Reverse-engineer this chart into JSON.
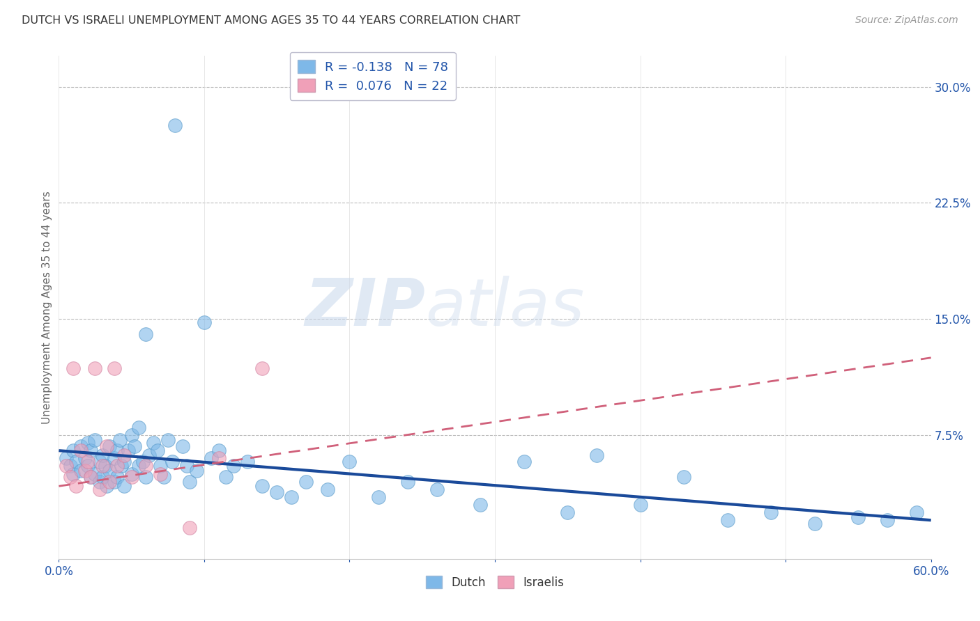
{
  "title": "DUTCH VS ISRAELI UNEMPLOYMENT AMONG AGES 35 TO 44 YEARS CORRELATION CHART",
  "source": "Source: ZipAtlas.com",
  "ylabel": "Unemployment Among Ages 35 to 44 years",
  "xlim": [
    0.0,
    0.6
  ],
  "ylim": [
    -0.005,
    0.32
  ],
  "xticks": [
    0.0,
    0.1,
    0.2,
    0.3,
    0.4,
    0.5,
    0.6
  ],
  "xticklabels": [
    "0.0%",
    "",
    "",
    "",
    "",
    "",
    "60.0%"
  ],
  "ytick_positions": [
    0.0,
    0.075,
    0.15,
    0.225,
    0.3
  ],
  "ytick_labels": [
    "",
    "7.5%",
    "15.0%",
    "22.5%",
    "30.0%"
  ],
  "dutch_color": "#7EB8E8",
  "israeli_color": "#F0A0B8",
  "dutch_line_color": "#1A4A9A",
  "israeli_line_color": "#D0607A",
  "watermark_zip": "ZIP",
  "watermark_atlas": "atlas",
  "background_color": "#ffffff",
  "grid_color": "#bbbbbb",
  "dutch_x": [
    0.005,
    0.008,
    0.01,
    0.01,
    0.012,
    0.015,
    0.015,
    0.018,
    0.02,
    0.02,
    0.022,
    0.022,
    0.025,
    0.025,
    0.028,
    0.028,
    0.03,
    0.03,
    0.032,
    0.033,
    0.035,
    0.035,
    0.038,
    0.038,
    0.04,
    0.04,
    0.042,
    0.043,
    0.045,
    0.045,
    0.048,
    0.05,
    0.05,
    0.052,
    0.055,
    0.055,
    0.058,
    0.06,
    0.06,
    0.062,
    0.065,
    0.068,
    0.07,
    0.072,
    0.075,
    0.078,
    0.08,
    0.085,
    0.088,
    0.09,
    0.095,
    0.1,
    0.105,
    0.11,
    0.115,
    0.12,
    0.13,
    0.14,
    0.15,
    0.16,
    0.17,
    0.185,
    0.2,
    0.22,
    0.24,
    0.26,
    0.29,
    0.32,
    0.35,
    0.37,
    0.4,
    0.43,
    0.46,
    0.49,
    0.52,
    0.55,
    0.57,
    0.59
  ],
  "dutch_y": [
    0.06,
    0.055,
    0.065,
    0.05,
    0.058,
    0.068,
    0.052,
    0.06,
    0.07,
    0.055,
    0.048,
    0.065,
    0.072,
    0.05,
    0.058,
    0.045,
    0.062,
    0.048,
    0.055,
    0.042,
    0.068,
    0.052,
    0.06,
    0.045,
    0.065,
    0.048,
    0.072,
    0.055,
    0.058,
    0.042,
    0.065,
    0.075,
    0.05,
    0.068,
    0.08,
    0.055,
    0.058,
    0.14,
    0.048,
    0.062,
    0.07,
    0.065,
    0.055,
    0.048,
    0.072,
    0.058,
    0.275,
    0.068,
    0.055,
    0.045,
    0.052,
    0.148,
    0.06,
    0.065,
    0.048,
    0.055,
    0.058,
    0.042,
    0.038,
    0.035,
    0.045,
    0.04,
    0.058,
    0.035,
    0.045,
    0.04,
    0.03,
    0.058,
    0.025,
    0.062,
    0.03,
    0.048,
    0.02,
    0.025,
    0.018,
    0.022,
    0.02,
    0.025
  ],
  "israeli_x": [
    0.005,
    0.008,
    0.01,
    0.012,
    0.015,
    0.018,
    0.02,
    0.022,
    0.025,
    0.028,
    0.03,
    0.033,
    0.035,
    0.038,
    0.04,
    0.045,
    0.05,
    0.06,
    0.07,
    0.09,
    0.11,
    0.14
  ],
  "israeli_y": [
    0.055,
    0.048,
    0.118,
    0.042,
    0.065,
    0.052,
    0.058,
    0.048,
    0.118,
    0.04,
    0.055,
    0.068,
    0.045,
    0.118,
    0.055,
    0.062,
    0.048,
    0.055,
    0.05,
    0.015,
    0.06,
    0.118
  ]
}
